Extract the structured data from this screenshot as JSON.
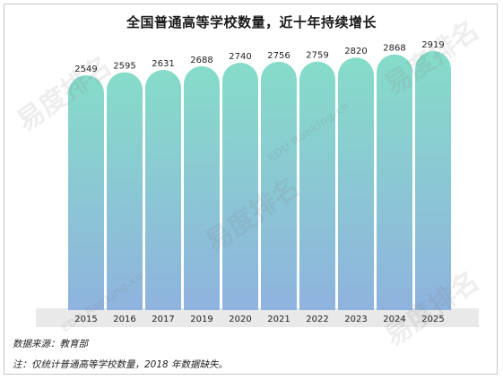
{
  "chart_data": {
    "type": "bar",
    "title": "全国普通高等学校数量，近十年持续增长",
    "categories": [
      "2015",
      "2016",
      "2017",
      "2019",
      "2020",
      "2021",
      "2022",
      "2023",
      "2024",
      "2025"
    ],
    "values": [
      2549,
      2595,
      2631,
      2688,
      2740,
      2756,
      2759,
      2820,
      2868,
      2919
    ],
    "xlabel": "",
    "ylabel": "",
    "ylim": [
      0,
      2919
    ],
    "grid": false,
    "legend": "none",
    "bar_gradient_top": "#86dcc9",
    "bar_gradient_bottom": "#8fb3de",
    "axis_band_color": "#e9e9e9"
  },
  "notes": {
    "source": "数据来源：教育部",
    "footnote": "注：仅统计普通高等学校数量，2018 年数据缺失。"
  },
  "watermark": {
    "brand": "易度排名",
    "sub": "EDU Ranking.cn"
  }
}
